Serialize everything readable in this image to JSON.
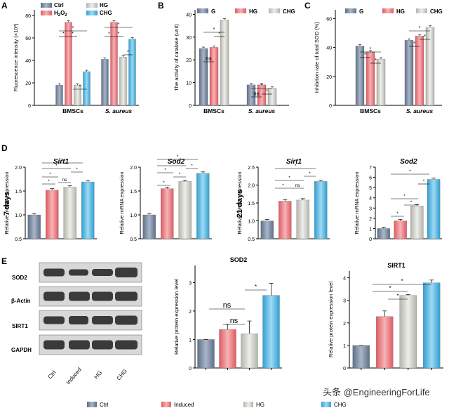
{
  "colors": {
    "ctrl": "#7f8fa6",
    "h2o2": "#ea7d83",
    "hg": "#c9c9c2",
    "chg": "#49b3df",
    "blot_bg": "#d8d8d8",
    "band": "#1e1e1e"
  },
  "panels": {
    "A": "A",
    "B": "B",
    "C": "C",
    "D": "D",
    "E": "E"
  },
  "legend_a": [
    "Ctrl",
    "H2O2",
    "HG",
    "CHG"
  ],
  "legend_bc": [
    "G",
    "HG",
    "CHG"
  ],
  "legend_bottom": [
    "Ctrl",
    "Induced",
    "HG",
    "CHG"
  ],
  "sig": {
    "star": "*",
    "ns": "ns"
  },
  "timepoints": {
    "d7": "7 days",
    "d21": "21 days"
  },
  "blot": {
    "rows": [
      "SOD2",
      "β-Actin",
      "SIRT1",
      "GAPDH"
    ],
    "lanes": [
      "Ctrl",
      "Induced",
      "HG",
      "CHG"
    ]
  },
  "watermark": "头条 @EngineeringForLife",
  "chart_data": [
    {
      "id": "A",
      "type": "bar",
      "ylabel": "Fluorescence intensity (×10³)",
      "categories": [
        "BMSCs",
        "S. aureus"
      ],
      "ylim": [
        0,
        85
      ],
      "yticks": [
        0,
        20,
        40,
        60,
        80
      ],
      "series": [
        {
          "name": "Ctrl",
          "values": [
            18,
            41
          ]
        },
        {
          "name": "H2O2",
          "values": [
            74,
            74
          ]
        },
        {
          "name": "HG",
          "values": [
            18,
            43
          ]
        },
        {
          "name": "CHG",
          "values": [
            30,
            59
          ]
        }
      ]
    },
    {
      "id": "B",
      "type": "bar",
      "ylabel": "The activity of catalase (unit)",
      "categories": [
        "BMSCs",
        "S. aureus"
      ],
      "ylim": [
        0,
        42
      ],
      "yticks": [
        0,
        10,
        20,
        30,
        40
      ],
      "series": [
        {
          "name": "G",
          "values": [
            25,
            9
          ]
        },
        {
          "name": "HG",
          "values": [
            25.5,
            9
          ]
        },
        {
          "name": "CHG",
          "values": [
            37.5,
            7.5
          ]
        }
      ]
    },
    {
      "id": "C",
      "type": "bar",
      "ylabel": "Inhibition rate of total SOD (%)",
      "categories": [
        "BMSCs",
        "S. aureus"
      ],
      "ylim": [
        0,
        66
      ],
      "yticks": [
        0,
        20,
        40,
        60
      ],
      "series": [
        {
          "name": "G",
          "values": [
            41,
            45
          ]
        },
        {
          "name": "HG",
          "values": [
            37,
            48
          ]
        },
        {
          "name": "CHG",
          "values": [
            32,
            54
          ]
        }
      ]
    },
    {
      "id": "D1",
      "type": "bar",
      "title": "Sirt1",
      "ylabel": "Relative mRNA expression",
      "ylim": [
        0.5,
        2.0
      ],
      "yticks": [
        0.5,
        1.0,
        1.5,
        2.0
      ],
      "values": [
        1.0,
        1.52,
        1.58,
        1.69
      ]
    },
    {
      "id": "D2",
      "type": "bar",
      "title": "Sod2",
      "ylabel": "Relative mRNA expression",
      "ylim": [
        0.5,
        2.0
      ],
      "yticks": [
        0.5,
        1.0,
        1.5,
        2.0
      ],
      "values": [
        1.0,
        1.55,
        1.7,
        1.87
      ]
    },
    {
      "id": "D3",
      "type": "bar",
      "title": "Sirt1",
      "ylabel": "Relative mRNA expression",
      "ylim": [
        0.5,
        2.5
      ],
      "yticks": [
        0.5,
        1.0,
        1.5,
        2.0,
        2.5
      ],
      "values": [
        1.0,
        1.55,
        1.58,
        2.1
      ]
    },
    {
      "id": "D4",
      "type": "bar",
      "title": "Sod2",
      "ylabel": "Relative mRNA expression",
      "ylim": [
        0,
        7
      ],
      "yticks": [
        0,
        1,
        2,
        3,
        4,
        5,
        6,
        7
      ],
      "values": [
        1.0,
        1.75,
        3.2,
        5.8
      ]
    },
    {
      "id": "E1",
      "type": "bar",
      "title": "SOD2",
      "ylabel": "Relative protein expression level",
      "ylim": [
        0,
        3.6
      ],
      "yticks": [
        0,
        1,
        2,
        3
      ],
      "values": [
        1.0,
        1.35,
        1.2,
        2.55
      ]
    },
    {
      "id": "E2",
      "type": "bar",
      "title": "SIRT1",
      "ylabel": "Relative protein expression level",
      "ylim": [
        0,
        4.3
      ],
      "yticks": [
        0,
        1,
        2,
        3,
        4
      ],
      "values": [
        1.0,
        2.28,
        3.22,
        3.78
      ]
    }
  ]
}
